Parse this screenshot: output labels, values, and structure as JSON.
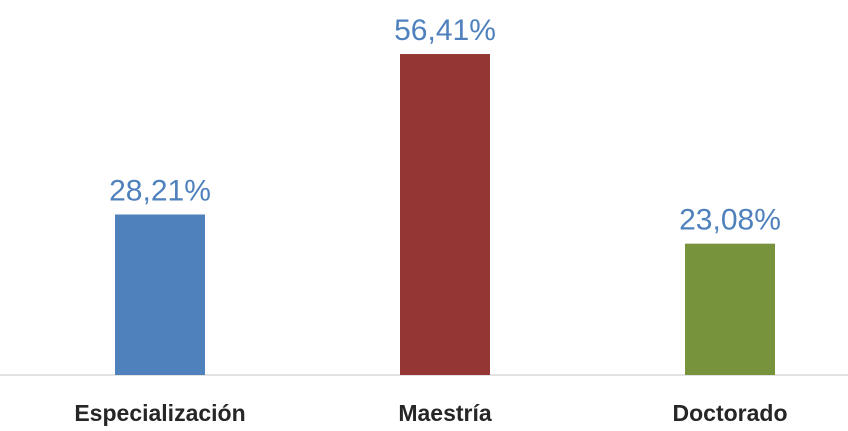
{
  "chart_data": {
    "type": "bar",
    "title": "",
    "xlabel": "",
    "ylabel": "",
    "categories": [
      "Especialización",
      "Maestría",
      "Doctorado"
    ],
    "values": [
      28.21,
      56.41,
      23.08
    ],
    "value_labels": [
      "28,21%",
      "56,41%",
      "23,08%"
    ],
    "colors": [
      "#4f81bd",
      "#943634",
      "#77933c"
    ],
    "label_color": "#4f81bd",
    "ylim": [
      0,
      60
    ],
    "grid": false,
    "legend": "none"
  }
}
